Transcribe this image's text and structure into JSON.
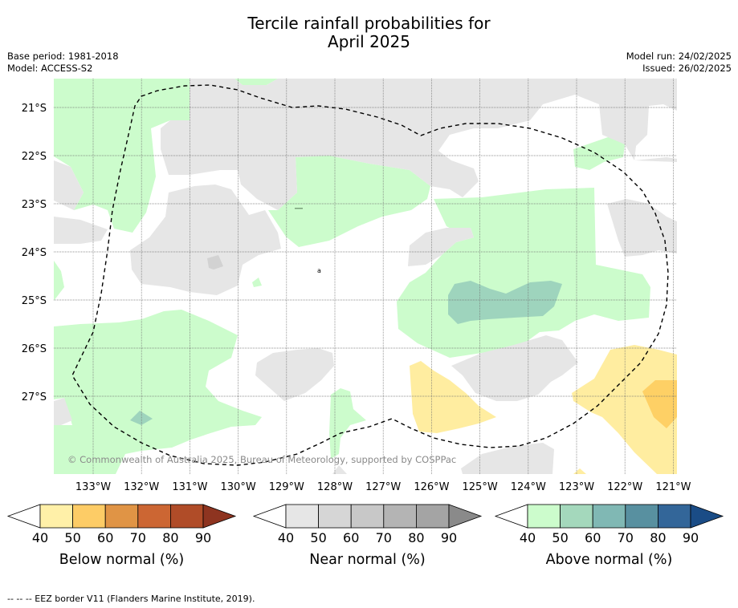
{
  "title": {
    "line1": "Tercile rainfall probabilities for",
    "line2": "April 2025"
  },
  "info_left": {
    "base_period": "Base period: 1981-2018",
    "model": "Model: ACCESS-S2"
  },
  "info_right": {
    "model_run": "Model run: 24/02/2025",
    "issued": "Issued: 26/02/2025"
  },
  "map": {
    "lat_labels": [
      "21°S",
      "22°S",
      "23°S",
      "24°S",
      "25°S",
      "26°S",
      "27°S"
    ],
    "lon_labels": [
      "133°W",
      "132°W",
      "131°W",
      "130°W",
      "129°W",
      "128°W",
      "127°W",
      "126°W",
      "125°W",
      "124°W",
      "123°W",
      "122°W",
      "121°W"
    ],
    "copyright": "© Commonwealth of Australia 2025, Bureau of Meteorology, supported by COSPPac",
    "colors": {
      "above_40": "#ccfccc",
      "above_50": "#9ed4bd",
      "near_40": "#e6e6e6",
      "near_50": "#d2d2d2",
      "below_40": "#ffeda0",
      "below_50": "#fed065",
      "grid": "#6f6f6f",
      "eez": "#000000"
    }
  },
  "colorbars": [
    {
      "title": "Below normal (%)",
      "ticks": [
        "40",
        "50",
        "60",
        "70",
        "80",
        "90"
      ],
      "colors": [
        "#fff0a8",
        "#fdcc66",
        "#e09445",
        "#cc6633",
        "#b04c28",
        "#8e3420"
      ]
    },
    {
      "title": "Near normal (%)",
      "ticks": [
        "40",
        "50",
        "60",
        "70",
        "80",
        "90"
      ],
      "colors": [
        "#e6e6e6",
        "#d6d6d6",
        "#c8c8c8",
        "#b4b4b4",
        "#a4a4a4",
        "#8a8a8a"
      ]
    },
    {
      "title": "Above normal (%)",
      "ticks": [
        "40",
        "50",
        "60",
        "70",
        "80",
        "90"
      ],
      "colors": [
        "#ccfccc",
        "#a4d8bc",
        "#80b8b4",
        "#5890a0",
        "#336699",
        "#1a4c86"
      ]
    }
  ],
  "footer": "--  --  -- EEZ border V11 (Flanders Marine Institute, 2019)."
}
